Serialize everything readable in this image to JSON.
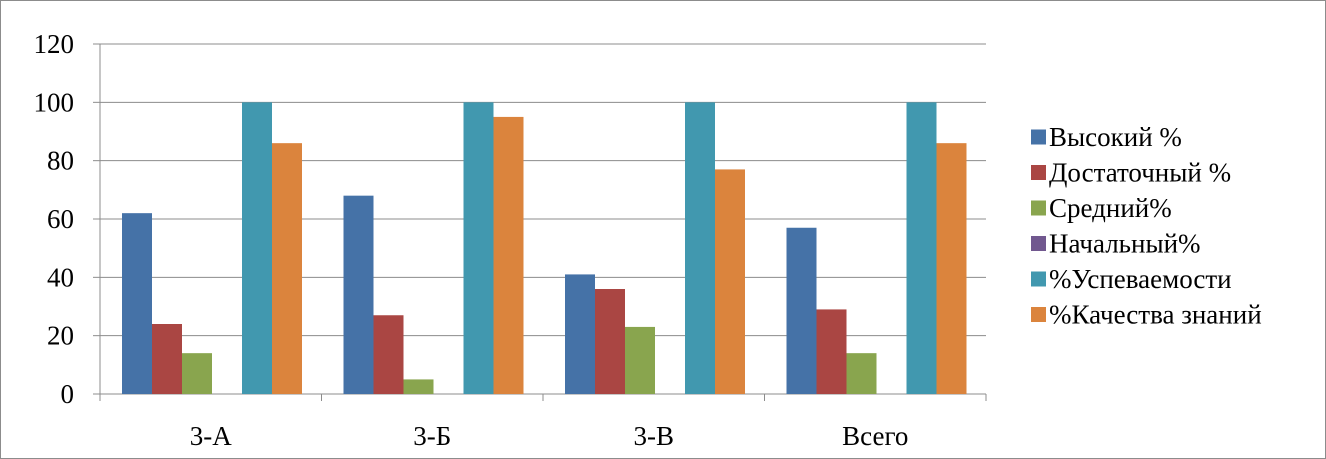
{
  "chart_data": {
    "type": "bar",
    "title": "",
    "xlabel": "",
    "ylabel": "",
    "categories": [
      "3-А",
      "3-Б",
      "3-В",
      "Всего"
    ],
    "ylim": [
      0,
      120
    ],
    "yticks": [
      0,
      20,
      40,
      60,
      80,
      100,
      120
    ],
    "grid": true,
    "legend_position": "right",
    "series": [
      {
        "name": "Высокий %",
        "color": "#4572A7",
        "values": [
          62,
          68,
          41,
          57
        ]
      },
      {
        "name": "Достаточный %",
        "color": "#AA4643",
        "values": [
          24,
          27,
          36,
          29
        ]
      },
      {
        "name": "Средний%",
        "color": "#89A54E",
        "values": [
          14,
          5,
          23,
          14
        ]
      },
      {
        "name": "Начальный%",
        "color": "#71588F",
        "values": [
          0,
          0,
          0,
          0
        ]
      },
      {
        "name": "%Успеваемости",
        "color": "#4198AF",
        "values": [
          100,
          100,
          100,
          100
        ]
      },
      {
        "name": "%Качества знаний",
        "color": "#DB843D",
        "values": [
          86,
          95,
          77,
          86
        ]
      }
    ]
  }
}
